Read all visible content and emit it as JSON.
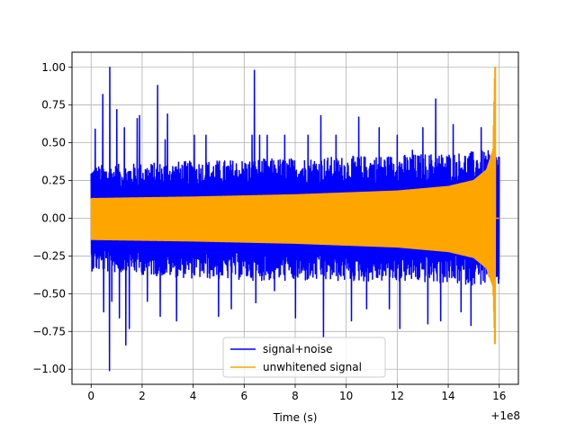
{
  "chart_data": {
    "type": "line",
    "title": "",
    "xlabel": "Time (s)",
    "ylabel": "",
    "x_offset_label": "+1e8",
    "xlim": [
      -0.75,
      16.75
    ],
    "ylim": [
      -1.1,
      1.1
    ],
    "x_ticks": [
      0,
      2,
      4,
      6,
      8,
      10,
      12,
      14,
      16
    ],
    "x_tick_labels": [
      "0",
      "2",
      "4",
      "6",
      "8",
      "10",
      "12",
      "14",
      "16"
    ],
    "y_ticks": [
      -1.0,
      -0.75,
      -0.5,
      -0.25,
      0.0,
      0.25,
      0.5,
      0.75,
      1.0
    ],
    "y_tick_labels": [
      "−1.00",
      "−0.75",
      "−0.50",
      "−0.25",
      "0.00",
      "0.25",
      "0.50",
      "0.75",
      "1.00"
    ],
    "grid": true,
    "legend_position": "bottom-center",
    "series": [
      {
        "name": "signal+noise",
        "color": "#0000ff",
        "x_range": [
          0,
          16
        ],
        "typical_envelope": [
          {
            "x": 0,
            "upper": 0.35,
            "lower": -0.35
          },
          {
            "x": 4,
            "upper": 0.38,
            "lower": -0.4
          },
          {
            "x": 8,
            "upper": 0.4,
            "lower": -0.42
          },
          {
            "x": 12,
            "upper": 0.42,
            "lower": -0.42
          },
          {
            "x": 16,
            "upper": 0.45,
            "lower": -0.45
          }
        ],
        "peaks": [
          {
            "x": 0.15,
            "y": 0.59
          },
          {
            "x": 0.45,
            "y": 0.82
          },
          {
            "x": 0.5,
            "y": -0.62
          },
          {
            "x": 0.8,
            "y": -0.55
          },
          {
            "x": 1.0,
            "y": 0.72
          },
          {
            "x": 1.1,
            "y": -0.66
          },
          {
            "x": 1.3,
            "y": 0.6
          },
          {
            "x": 1.5,
            "y": -0.73
          },
          {
            "x": 1.8,
            "y": 0.66
          },
          {
            "x": 1.9,
            "y": 0.68
          },
          {
            "x": 2.2,
            "y": -0.55
          },
          {
            "x": 2.6,
            "y": 0.55
          },
          {
            "x": 2.7,
            "y": -0.65
          },
          {
            "x": 2.9,
            "y": 0.52
          },
          {
            "x": 3.0,
            "y": 0.69
          },
          {
            "x": 3.35,
            "y": -0.68
          },
          {
            "x": 4.05,
            "y": 0.55
          },
          {
            "x": 4.5,
            "y": 0.55
          },
          {
            "x": 5.0,
            "y": -0.65
          },
          {
            "x": 5.5,
            "y": -0.6
          },
          {
            "x": 6.3,
            "y": 0.55
          },
          {
            "x": 6.45,
            "y": -0.56
          },
          {
            "x": 6.6,
            "y": 0.55
          },
          {
            "x": 6.9,
            "y": 0.55
          },
          {
            "x": 7.2,
            "y": -0.48
          },
          {
            "x": 7.6,
            "y": 0.55
          },
          {
            "x": 8.0,
            "y": -0.66
          },
          {
            "x": 8.5,
            "y": 0.55
          },
          {
            "x": 9.0,
            "y": 0.68
          },
          {
            "x": 9.1,
            "y": -0.79
          },
          {
            "x": 9.6,
            "y": 0.55
          },
          {
            "x": 10.2,
            "y": -0.68
          },
          {
            "x": 10.5,
            "y": 0.67
          },
          {
            "x": 10.8,
            "y": -0.6
          },
          {
            "x": 11.3,
            "y": 0.6
          },
          {
            "x": 11.7,
            "y": -0.6
          },
          {
            "x": 12.0,
            "y": 0.55
          },
          {
            "x": 12.1,
            "y": -0.73
          },
          {
            "x": 12.6,
            "y": 0.45
          },
          {
            "x": 13.0,
            "y": 0.6
          },
          {
            "x": 13.2,
            "y": -0.7
          },
          {
            "x": 13.5,
            "y": 0.79
          },
          {
            "x": 13.7,
            "y": -0.68
          },
          {
            "x": 14.2,
            "y": 0.62
          },
          {
            "x": 14.5,
            "y": -0.62
          },
          {
            "x": 14.9,
            "y": -0.71
          },
          {
            "x": 15.3,
            "y": 0.6
          },
          {
            "x": 15.8,
            "y": -0.5
          }
        ],
        "extreme_points": [
          {
            "x": 0.73,
            "y": 1.0
          },
          {
            "x": 0.73,
            "y": -1.01
          },
          {
            "x": 6.4,
            "y": 0.98
          },
          {
            "x": 2.6,
            "y": 0.88
          },
          {
            "x": 1.35,
            "y": -0.84
          }
        ]
      },
      {
        "name": "unwhitened signal",
        "color": "#ffa500",
        "x_range": [
          0,
          15.85
        ],
        "envelope": [
          {
            "x": 0.0,
            "upper": 0.13,
            "lower": -0.14
          },
          {
            "x": 4.0,
            "upper": 0.14,
            "lower": -0.15
          },
          {
            "x": 8.0,
            "upper": 0.155,
            "lower": -0.165
          },
          {
            "x": 12.0,
            "upper": 0.18,
            "lower": -0.19
          },
          {
            "x": 14.0,
            "upper": 0.21,
            "lower": -0.22
          },
          {
            "x": 15.0,
            "upper": 0.25,
            "lower": -0.26
          },
          {
            "x": 15.5,
            "upper": 0.32,
            "lower": -0.33
          },
          {
            "x": 15.75,
            "upper": 0.45,
            "lower": -0.45
          },
          {
            "x": 15.82,
            "upper": 1.0,
            "lower": -0.83
          }
        ],
        "after_merger_value": 0.0,
        "after_merger_range": [
          15.85,
          16.0
        ]
      }
    ]
  }
}
